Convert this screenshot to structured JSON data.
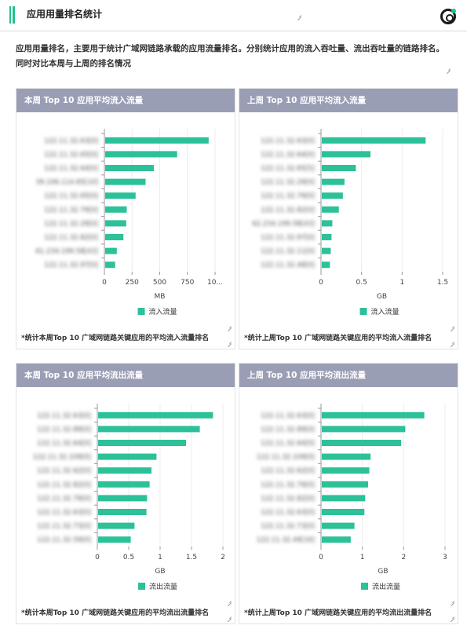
{
  "header": {
    "title": "应用用量排名统计"
  },
  "description": {
    "line1": "应用用量排名，主要用于统计广域网链路承载的应用流量排名。分别统计应用的流入吞吐量、流出吞吐量的链路排名。",
    "line2": "同时对比本周与上周的排名情况"
  },
  "colors": {
    "bar": "#2cc198",
    "panel_header": "#9a9eb5",
    "accent": "#21c08f"
  },
  "panels": [
    {
      "title": "本周 Top 10 应用平均流入流量",
      "note": "*统计本周Top 10 广域网链路关键应用的平均流入流量排名"
    },
    {
      "title": "上周 Top 10 应用平均流入流量",
      "note": "*统计上周Top 10 广域网链路关键应用的平均流入流量排名"
    },
    {
      "title": "本周 Top 10 应用平均流出流量",
      "note": "*统计本周Top 10 广域网链路关键应用的平均流出流量排名"
    },
    {
      "title": "上周 Top 10 应用平均流出流量",
      "note": "*统计上周Top 10 广域网链路关键应用的平均流出流量排名"
    }
  ],
  "chart_data": [
    {
      "type": "bar",
      "orientation": "horizontal",
      "categories": [
        "122.11.32.63[0]",
        "122.11.32.65[0]",
        "122.11.32.64[0]",
        "39.106.114.65[10]",
        "122.11.32.65[0]",
        "122.11.32.79[0]",
        "122.11.32.29[0]",
        "122.11.32.82[0]",
        "61.234.199.58[43]",
        "122.11.32.97[0]"
      ],
      "series": [
        {
          "name": "流入流量",
          "values": [
            935,
            650,
            440,
            365,
            275,
            195,
            190,
            165,
            105,
            90
          ]
        }
      ],
      "xlabel": "MB",
      "ticks": [
        "0",
        "250",
        "500",
        "750",
        "10..."
      ],
      "tick_values": [
        0,
        250,
        500,
        750,
        1000
      ],
      "xlim": [
        0,
        1000
      ],
      "legend": "bottom-center"
    },
    {
      "type": "bar",
      "orientation": "horizontal",
      "categories": [
        "122.11.32.63[0]",
        "122.11.32.64[0]",
        "122.11.32.65[5]",
        "122.11.32.29[0]",
        "122.11.32.79[0]",
        "122.11.32.82[0]",
        "62.234.199.58[43]",
        "122.11.32.97[0]",
        "122.11.32.11[0]",
        "122.11.32.48[0]"
      ],
      "series": [
        {
          "name": "流入流量",
          "values": [
            1.28,
            0.6,
            0.42,
            0.28,
            0.26,
            0.21,
            0.13,
            0.12,
            0.11,
            0.1
          ]
        }
      ],
      "xlabel": "GB",
      "ticks": [
        "0",
        "0.5",
        "1",
        "1.5"
      ],
      "tick_values": [
        0,
        0.5,
        1,
        1.5
      ],
      "xlim": [
        0,
        1.5
      ],
      "legend": "bottom-center"
    },
    {
      "type": "bar",
      "orientation": "horizontal",
      "categories": [
        "122.11.32.63[0]",
        "122.11.32.89[0]",
        "122.11.32.64[0]",
        "122.11.32.109[0]",
        "122.11.32.62[0]",
        "122.11.32.82[0]",
        "122.11.32.79[0]",
        "122.11.32.63[0]",
        "122.11.32.73[0]",
        "122.11.32.59[0]"
      ],
      "series": [
        {
          "name": "流出流量",
          "values": [
            1.83,
            1.62,
            1.4,
            0.93,
            0.85,
            0.82,
            0.78,
            0.77,
            0.58,
            0.52
          ]
        }
      ],
      "xlabel": "GB",
      "ticks": [
        "0",
        "0.5",
        "1",
        "1.5",
        "2"
      ],
      "tick_values": [
        0,
        0.5,
        1,
        1.5,
        2
      ],
      "xlim": [
        0,
        2
      ],
      "legend": "bottom-center"
    },
    {
      "type": "bar",
      "orientation": "horizontal",
      "categories": [
        "122.11.32.63[0]",
        "122.11.32.89[0]",
        "122.11.32.64[0]",
        "122.11.32.109[0]",
        "122.11.32.62[0]",
        "122.11.32.79[0]",
        "122.11.32.82[0]",
        "122.11.32.63[0]",
        "122.11.32.73[0]",
        "122.11.32.49[16]"
      ],
      "series": [
        {
          "name": "流出流量",
          "values": [
            2.48,
            2.02,
            1.92,
            1.18,
            1.15,
            1.12,
            1.05,
            1.03,
            0.79,
            0.7
          ]
        }
      ],
      "xlabel": "GB",
      "ticks": [
        "0",
        "1",
        "2",
        "3"
      ],
      "tick_values": [
        0,
        1,
        2,
        3
      ],
      "xlim": [
        0,
        3
      ],
      "legend": "bottom-center"
    }
  ]
}
